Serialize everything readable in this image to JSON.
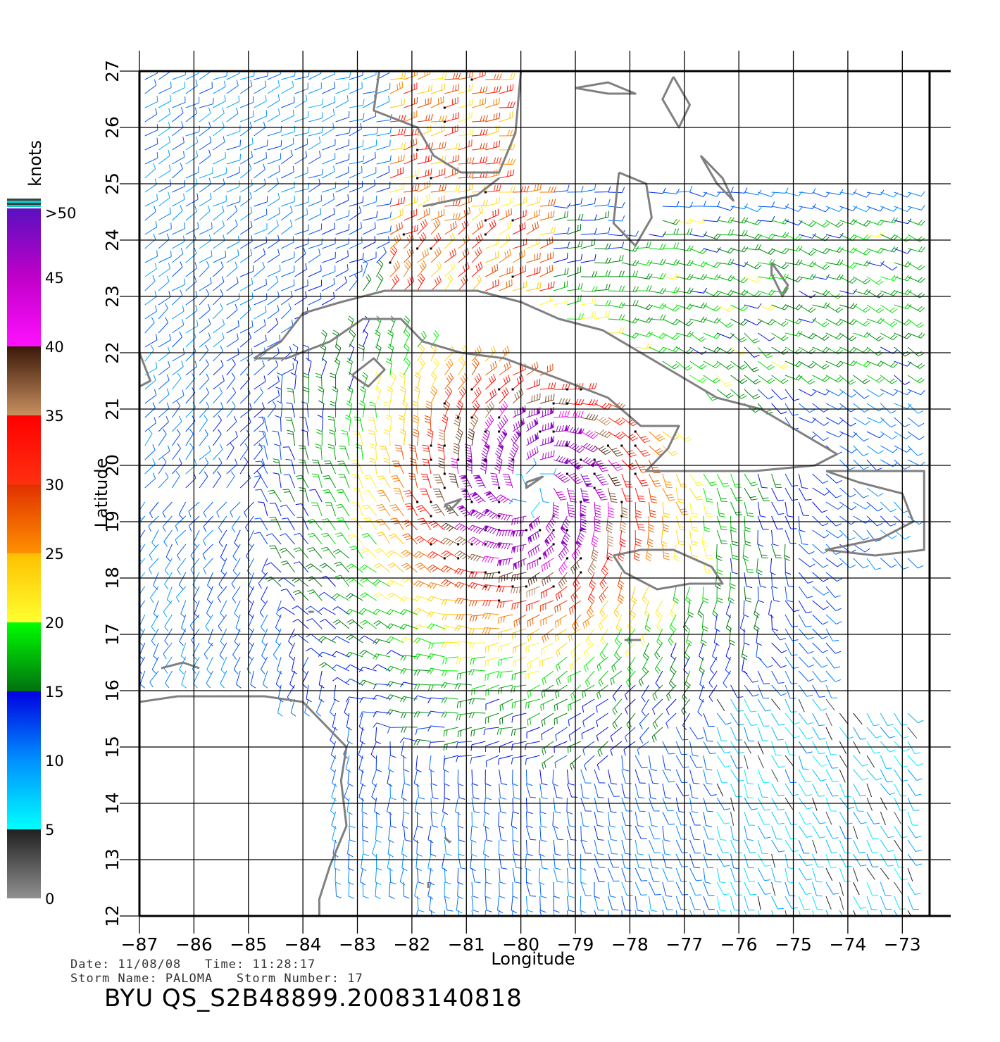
{
  "map": {
    "xlabel": "Longitude",
    "ylabel": "Latitude",
    "lon_ticks": [
      -87,
      -86,
      -85,
      -84,
      -83,
      -82,
      -81,
      -80,
      -79,
      -78,
      -77,
      -76,
      -75,
      -74,
      -73
    ],
    "lat_ticks": [
      12,
      13,
      14,
      15,
      16,
      17,
      18,
      19,
      20,
      21,
      22,
      23,
      24,
      25,
      26,
      27
    ],
    "lon_range": [
      -87,
      -72.5
    ],
    "lat_range": [
      12,
      27
    ],
    "storm_center": {
      "lon": -79.8,
      "lat": 19.6
    },
    "coast_color": "#808080",
    "grid_color": "#000000",
    "landmasses": [
      {
        "name": "Florida",
        "points": [
          [
            -82.6,
            27
          ],
          [
            -82.7,
            26.3
          ],
          [
            -81.9,
            26.0
          ],
          [
            -81.6,
            25.5
          ],
          [
            -81.1,
            25.2
          ],
          [
            -80.4,
            25.2
          ],
          [
            -80.1,
            25.9
          ],
          [
            -80.0,
            27
          ]
        ]
      },
      {
        "name": "Florida Keys",
        "points": [
          [
            -81.8,
            24.6
          ],
          [
            -81.3,
            24.7
          ],
          [
            -80.8,
            24.8
          ],
          [
            -80.4,
            25.1
          ]
        ]
      },
      {
        "name": "Andros",
        "points": [
          [
            -78.2,
            25.2
          ],
          [
            -77.7,
            25.0
          ],
          [
            -77.6,
            24.4
          ],
          [
            -77.9,
            23.9
          ],
          [
            -78.3,
            24.3
          ],
          [
            -78.2,
            25.2
          ]
        ]
      },
      {
        "name": "Great Abaco",
        "points": [
          [
            -77.2,
            26.9
          ],
          [
            -76.9,
            26.4
          ],
          [
            -77.1,
            26.0
          ],
          [
            -77.4,
            26.5
          ],
          [
            -77.2,
            26.9
          ]
        ]
      },
      {
        "name": "Grand Bahama",
        "points": [
          [
            -79.0,
            26.7
          ],
          [
            -78.4,
            26.6
          ],
          [
            -77.9,
            26.6
          ],
          [
            -78.4,
            26.8
          ],
          [
            -79.0,
            26.7
          ]
        ]
      },
      {
        "name": "Eleuthera",
        "points": [
          [
            -76.7,
            25.5
          ],
          [
            -76.3,
            25.1
          ],
          [
            -76.1,
            24.7
          ],
          [
            -76.4,
            25.0
          ],
          [
            -76.7,
            25.5
          ]
        ]
      },
      {
        "name": "Long Island",
        "points": [
          [
            -75.4,
            23.6
          ],
          [
            -75.1,
            23.2
          ],
          [
            -75.2,
            23.0
          ],
          [
            -75.4,
            23.4
          ],
          [
            -75.4,
            23.6
          ]
        ]
      },
      {
        "name": "Cuba",
        "points": [
          [
            -84.9,
            21.9
          ],
          [
            -84.4,
            22.2
          ],
          [
            -84.0,
            22.7
          ],
          [
            -83.3,
            22.9
          ],
          [
            -82.5,
            23.1
          ],
          [
            -81.6,
            23.1
          ],
          [
            -80.8,
            23.1
          ],
          [
            -80.0,
            22.9
          ],
          [
            -79.3,
            22.6
          ],
          [
            -78.5,
            22.4
          ],
          [
            -77.8,
            22.0
          ],
          [
            -77.1,
            21.6
          ],
          [
            -76.4,
            21.2
          ],
          [
            -75.6,
            21.0
          ],
          [
            -74.9,
            20.6
          ],
          [
            -74.2,
            20.2
          ],
          [
            -74.6,
            20.0
          ],
          [
            -75.7,
            19.9
          ],
          [
            -76.9,
            19.9
          ],
          [
            -77.7,
            19.9
          ],
          [
            -77.3,
            20.3
          ],
          [
            -77.1,
            20.7
          ],
          [
            -77.8,
            20.7
          ],
          [
            -78.4,
            21.2
          ],
          [
            -79.2,
            21.5
          ],
          [
            -80.3,
            21.9
          ],
          [
            -81.1,
            22.0
          ],
          [
            -81.8,
            22.2
          ],
          [
            -82.2,
            22.6
          ],
          [
            -82.9,
            22.6
          ],
          [
            -83.5,
            22.2
          ],
          [
            -84.3,
            21.9
          ],
          [
            -84.9,
            21.9
          ]
        ]
      },
      {
        "name": "Isla de la Juventud",
        "points": [
          [
            -83.1,
            21.6
          ],
          [
            -82.7,
            21.9
          ],
          [
            -82.5,
            21.7
          ],
          [
            -82.8,
            21.4
          ],
          [
            -83.1,
            21.6
          ]
        ]
      },
      {
        "name": "Grand Cayman",
        "points": [
          [
            -81.4,
            19.3
          ],
          [
            -81.1,
            19.4
          ],
          [
            -81.3,
            19.2
          ],
          [
            -81.4,
            19.3
          ]
        ]
      },
      {
        "name": "Cayman Brac",
        "points": [
          [
            -79.9,
            19.7
          ],
          [
            -79.6,
            19.8
          ],
          [
            -79.9,
            19.6
          ],
          [
            -79.9,
            19.7
          ]
        ]
      },
      {
        "name": "Jamaica",
        "points": [
          [
            -78.3,
            18.4
          ],
          [
            -77.8,
            18.5
          ],
          [
            -77.2,
            18.5
          ],
          [
            -76.5,
            18.2
          ],
          [
            -76.3,
            17.9
          ],
          [
            -76.9,
            17.9
          ],
          [
            -77.5,
            17.8
          ],
          [
            -78.1,
            18.1
          ],
          [
            -78.3,
            18.4
          ]
        ]
      },
      {
        "name": "Hispaniola",
        "points": [
          [
            -74.4,
            19.9
          ],
          [
            -73.4,
            19.9
          ],
          [
            -72.6,
            19.9
          ],
          [
            -72.6,
            18.5
          ],
          [
            -73.5,
            18.4
          ],
          [
            -74.4,
            18.5
          ],
          [
            -73.4,
            18.7
          ],
          [
            -72.8,
            19.0
          ],
          [
            -73.0,
            19.5
          ],
          [
            -73.8,
            19.7
          ],
          [
            -74.4,
            19.9
          ]
        ]
      },
      {
        "name": "Yucatan",
        "points": [
          [
            -87,
            21.4
          ],
          [
            -86.8,
            21.5
          ],
          [
            -87,
            22.0
          ]
        ]
      },
      {
        "name": "Belize coast",
        "points": [
          [
            -87,
            17.4
          ],
          [
            -87,
            16.4
          ]
        ]
      },
      {
        "name": "Honduras",
        "points": [
          [
            -87,
            15.8
          ],
          [
            -86.3,
            15.9
          ],
          [
            -85.5,
            15.9
          ],
          [
            -84.7,
            15.9
          ],
          [
            -84.0,
            15.8
          ],
          [
            -83.5,
            15.3
          ],
          [
            -83.2,
            15.0
          ],
          [
            -83.3,
            14.4
          ],
          [
            -83.2,
            13.6
          ],
          [
            -83.5,
            12.9
          ],
          [
            -83.7,
            12.3
          ],
          [
            -83.7,
            12.0
          ]
        ]
      },
      {
        "name": "Bay Islands",
        "points": [
          [
            -86.6,
            16.4
          ],
          [
            -86.2,
            16.5
          ],
          [
            -85.9,
            16.4
          ]
        ]
      },
      {
        "name": "Swan Islands",
        "points": [
          [
            -83.9,
            17.4
          ],
          [
            -83.8,
            17.4
          ]
        ]
      },
      {
        "name": "Providencia",
        "points": [
          [
            -81.4,
            13.4
          ],
          [
            -81.3,
            13.3
          ]
        ]
      },
      {
        "name": "San Andres",
        "points": [
          [
            -81.7,
            12.6
          ],
          [
            -81.7,
            12.5
          ]
        ]
      },
      {
        "name": "Serranilla Bank",
        "points": [
          [
            -79.6,
            16.0
          ],
          [
            -79.3,
            16.0
          ]
        ]
      },
      {
        "name": "Pedro Bank",
        "points": [
          [
            -78.1,
            16.9
          ],
          [
            -77.8,
            16.9
          ]
        ]
      }
    ]
  },
  "colorbar": {
    "title": "knots",
    "labels": [
      ">50",
      "45",
      "40",
      "35",
      "30",
      "25",
      "20",
      "15",
      "10",
      "5",
      "0"
    ],
    "stops": [
      {
        "value": 50,
        "color": "#5a10c0"
      },
      {
        "value": 45,
        "color": "#c000c8"
      },
      {
        "value": 40,
        "color": "#ff10ff"
      },
      {
        "value": 40,
        "color": "#3a1808"
      },
      {
        "value": 35,
        "color": "#c89060"
      },
      {
        "value": 35,
        "color": "#ff0000"
      },
      {
        "value": 30,
        "color": "#ff3010"
      },
      {
        "value": 30,
        "color": "#e03000"
      },
      {
        "value": 25,
        "color": "#ff9000"
      },
      {
        "value": 25,
        "color": "#ffc000"
      },
      {
        "value": 20,
        "color": "#ffff30"
      },
      {
        "value": 20,
        "color": "#00ff00"
      },
      {
        "value": 15,
        "color": "#007010"
      },
      {
        "value": 15,
        "color": "#0000e0"
      },
      {
        "value": 10,
        "color": "#0090ff"
      },
      {
        "value": 5,
        "color": "#00ffff"
      },
      {
        "value": 5,
        "color": "#202020"
      },
      {
        "value": 0,
        "color": "#909090"
      }
    ]
  },
  "footer": {
    "date_line": "Date: 11/08/08   Time: 11:28:17",
    "storm_line": "Storm Name: PALOMA   Storm Number: 17",
    "file_id": "BYU QS_S2B48899.20083140818"
  }
}
